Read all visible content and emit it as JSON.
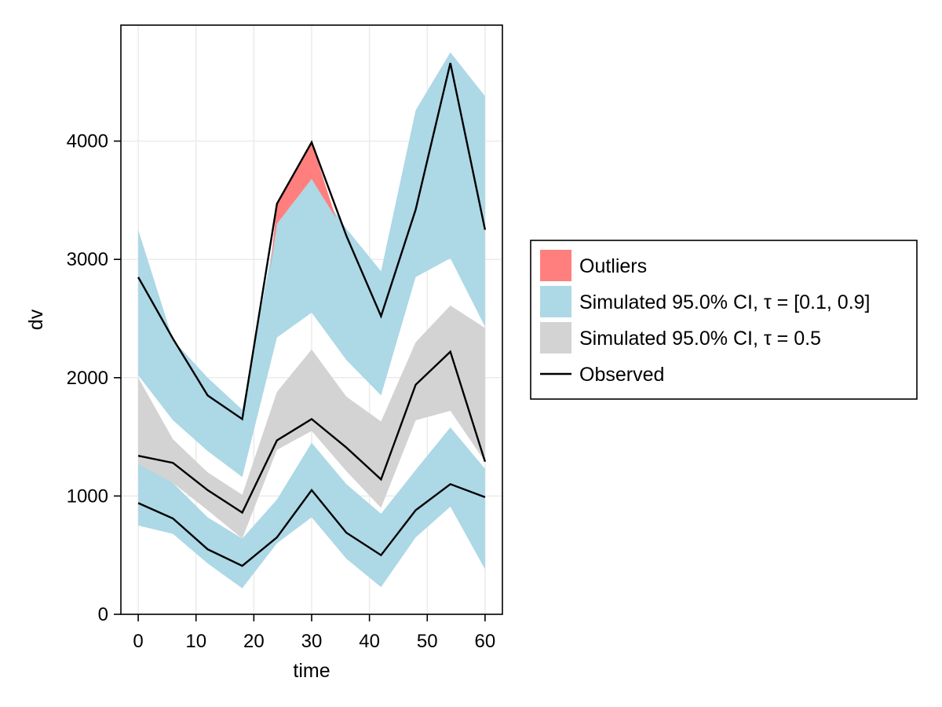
{
  "chart_data": {
    "type": "area",
    "xlabel": "time",
    "ylabel": "dv",
    "x_ticks": [
      0,
      10,
      20,
      30,
      40,
      50,
      60
    ],
    "y_ticks": [
      0,
      1000,
      2000,
      3000,
      4000
    ],
    "xlim": [
      -3,
      63
    ],
    "ylim": [
      0,
      4980
    ],
    "grid": true,
    "legend_position": "right",
    "x": [
      0,
      6,
      12,
      18,
      24,
      30,
      36,
      42,
      48,
      54,
      60
    ],
    "bands": [
      {
        "kind": "ci_outer",
        "quantile": "upper",
        "low": [
          2020,
          1640,
          1380,
          1160,
          2340,
          2550,
          2150,
          1850,
          2850,
          3010,
          2430
        ],
        "high": [
          3250,
          2320,
          2000,
          1730,
          3300,
          3680,
          3260,
          2900,
          4260,
          4750,
          4380
        ],
        "color": "#add8e6"
      },
      {
        "kind": "ci_median",
        "quantile": "median",
        "low": [
          1170,
          1110,
          880,
          640,
          1390,
          1550,
          1210,
          900,
          1640,
          1720,
          1290
        ],
        "high": [
          2000,
          1480,
          1200,
          1010,
          1880,
          2240,
          1840,
          1630,
          2300,
          2610,
          2420
        ],
        "color": "#d3d3d3"
      },
      {
        "kind": "ci_outer",
        "quantile": "lower",
        "low": [
          750,
          680,
          430,
          220,
          600,
          820,
          470,
          230,
          650,
          910,
          380
        ],
        "high": [
          1270,
          1110,
          820,
          640,
          970,
          1450,
          1100,
          850,
          1220,
          1580,
          1230
        ],
        "color": "#add8e6"
      }
    ],
    "outliers": [
      {
        "x": [
          22.8,
          24,
          30,
          34.2
        ],
        "ci_edge": [
          2900,
          3300,
          3680,
          3350
        ],
        "observed": [
          2900,
          3470,
          3990,
          3350
        ],
        "color": "#ff7f7f"
      }
    ],
    "observed_lines": [
      {
        "quantile": "upper",
        "values": [
          2850,
          2330,
          1850,
          1650,
          3470,
          3990,
          3200,
          2520,
          3420,
          4660,
          3250
        ]
      },
      {
        "quantile": "median",
        "values": [
          1340,
          1280,
          1050,
          860,
          1470,
          1650,
          1410,
          1140,
          1940,
          2220,
          1290
        ]
      },
      {
        "quantile": "lower",
        "values": [
          940,
          810,
          550,
          410,
          650,
          1050,
          690,
          500,
          880,
          1100,
          990
        ]
      }
    ],
    "legend": [
      {
        "label": "Outliers",
        "kind": "patch",
        "color": "#ff7f7f"
      },
      {
        "label": "Simulated 95.0% CI, τ = [0.1, 0.9]",
        "kind": "patch",
        "color": "#add8e6"
      },
      {
        "label": "Simulated 95.0% CI, τ = 0.5",
        "kind": "patch",
        "color": "#d3d3d3"
      },
      {
        "label": "Observed",
        "kind": "line",
        "color": "#000000"
      }
    ],
    "colors": {
      "grid": "#ebebeb",
      "axis": "#000000",
      "observed": "#000000"
    }
  }
}
